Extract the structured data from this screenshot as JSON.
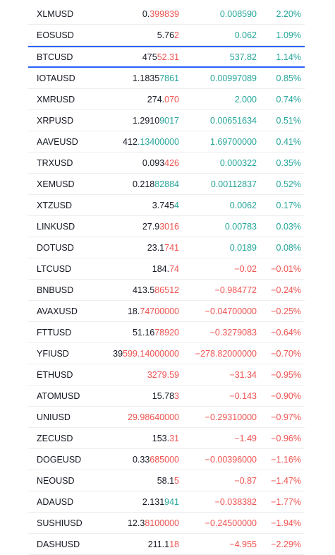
{
  "colors": {
    "up": "#26a69a",
    "down": "#ef5350",
    "neutral": "#131722",
    "selection": "#2962ff"
  },
  "rows": [
    {
      "symbol": "XLMUSD",
      "last_a": "0.",
      "last_b": "399839",
      "last_b_dir": "down",
      "change": "0.008590",
      "percent": "2.20%",
      "dir": "up"
    },
    {
      "symbol": "EOSUSD",
      "last_a": "5.76",
      "last_b": "2",
      "last_b_dir": "down",
      "change": "0.062",
      "percent": "1.09%",
      "dir": "up"
    },
    {
      "symbol": "BTCUSD",
      "last_a": "475",
      "last_b": "52.31",
      "last_b_dir": "down",
      "change": "537.82",
      "percent": "1.14%",
      "dir": "up",
      "selected": true
    },
    {
      "symbol": "IOTAUSD",
      "last_a": "1.1835",
      "last_b": "7861",
      "last_b_dir": "up",
      "change": "0.00997089",
      "percent": "0.85%",
      "dir": "up"
    },
    {
      "symbol": "XMRUSD",
      "last_a": "274.",
      "last_b": "070",
      "last_b_dir": "down",
      "change": "2.000",
      "percent": "0.74%",
      "dir": "up"
    },
    {
      "symbol": "XRPUSD",
      "last_a": "1.2910",
      "last_b": "9017",
      "last_b_dir": "up",
      "change": "0.00651634",
      "percent": "0.51%",
      "dir": "up"
    },
    {
      "symbol": "AAVEUSD",
      "last_a": "412",
      "last_b": ".13400000",
      "last_b_dir": "up",
      "change": "1.69700000",
      "percent": "0.41%",
      "dir": "up"
    },
    {
      "symbol": "TRXUSD",
      "last_a": "0.093",
      "last_b": "426",
      "last_b_dir": "down",
      "change": "0.000322",
      "percent": "0.35%",
      "dir": "up"
    },
    {
      "symbol": "XEMUSD",
      "last_a": "0.218",
      "last_b": "82884",
      "last_b_dir": "up",
      "change": "0.00112837",
      "percent": "0.52%",
      "dir": "up"
    },
    {
      "symbol": "XTZUSD",
      "last_a": "3.745",
      "last_b": "4",
      "last_b_dir": "up",
      "change": "0.0062",
      "percent": "0.17%",
      "dir": "up"
    },
    {
      "symbol": "LINKUSD",
      "last_a": "27.9",
      "last_b": "3016",
      "last_b_dir": "down",
      "change": "0.00783",
      "percent": "0.03%",
      "dir": "up"
    },
    {
      "symbol": "DOTUSD",
      "last_a": "23.1",
      "last_b": "741",
      "last_b_dir": "down",
      "change": "0.0189",
      "percent": "0.08%",
      "dir": "up"
    },
    {
      "symbol": "LTCUSD",
      "last_a": "184.",
      "last_b": "74",
      "last_b_dir": "down",
      "change": "−0.02",
      "percent": "−0.01%",
      "dir": "down"
    },
    {
      "symbol": "BNBUSD",
      "last_a": "413.5",
      "last_b": "86512",
      "last_b_dir": "down",
      "change": "−0.984772",
      "percent": "−0.24%",
      "dir": "down"
    },
    {
      "symbol": "AVAXUSD",
      "last_a": "18.",
      "last_b": "74700000",
      "last_b_dir": "down",
      "change": "−0.04700000",
      "percent": "−0.25%",
      "dir": "down"
    },
    {
      "symbol": "FTTUSD",
      "last_a": "51.16",
      "last_b": "78920",
      "last_b_dir": "down",
      "change": "−0.3279083",
      "percent": "−0.64%",
      "dir": "down"
    },
    {
      "symbol": "YFIUSD",
      "last_a": "39",
      "last_b": "599.14000000",
      "last_b_dir": "down",
      "change": "−278.82000000",
      "percent": "−0.70%",
      "dir": "down"
    },
    {
      "symbol": "ETHUSD",
      "last_a": "",
      "last_b": "3279.59",
      "last_b_dir": "down",
      "change": "−31.34",
      "percent": "−0.95%",
      "dir": "down"
    },
    {
      "symbol": "ATOMUSD",
      "last_a": "15.78",
      "last_b": "3",
      "last_b_dir": "down",
      "change": "−0.143",
      "percent": "−0.90%",
      "dir": "down"
    },
    {
      "symbol": "UNIUSD",
      "last_a": "",
      "last_b": "29.98640000",
      "last_b_dir": "down",
      "change": "−0.29310000",
      "percent": "−0.97%",
      "dir": "down"
    },
    {
      "symbol": "ZECUSD",
      "last_a": "153.",
      "last_b": "31",
      "last_b_dir": "down",
      "change": "−1.49",
      "percent": "−0.96%",
      "dir": "down"
    },
    {
      "symbol": "DOGEUSD",
      "last_a": "0.33",
      "last_b": "685000",
      "last_b_dir": "down",
      "change": "−0.00396000",
      "percent": "−1.16%",
      "dir": "down"
    },
    {
      "symbol": "NEOUSD",
      "last_a": "58.1",
      "last_b": "5",
      "last_b_dir": "down",
      "change": "−0.87",
      "percent": "−1.47%",
      "dir": "down"
    },
    {
      "symbol": "ADAUSD",
      "last_a": "2.131",
      "last_b": "941",
      "last_b_dir": "up",
      "change": "−0.038382",
      "percent": "−1.77%",
      "dir": "down"
    },
    {
      "symbol": "SUSHIUSD",
      "last_a": "12.3",
      "last_b": "8100000",
      "last_b_dir": "down",
      "change": "−0.24500000",
      "percent": "−1.94%",
      "dir": "down"
    },
    {
      "symbol": "DASHUSD",
      "last_a": "211.1",
      "last_b": "18",
      "last_b_dir": "down",
      "change": "−4.955",
      "percent": "−2.29%",
      "dir": "down"
    }
  ]
}
